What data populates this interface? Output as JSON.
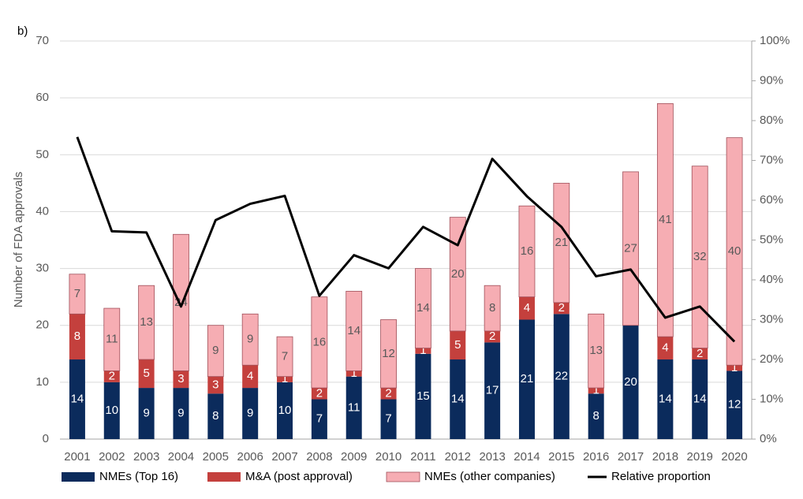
{
  "chart_data": {
    "type": "bar",
    "stacked": true,
    "panel_label": "b)",
    "y_label": "Number of FDA approvals",
    "categories": [
      "2001",
      "2002",
      "2003",
      "2004",
      "2005",
      "2006",
      "2007",
      "2008",
      "2009",
      "2010",
      "2011",
      "2012",
      "2013",
      "2014",
      "2015",
      "2016",
      "2017",
      "2018",
      "2019",
      "2020"
    ],
    "series": [
      {
        "name": "NMEs (Top 16)",
        "color": "#0b2b5c",
        "label_color": "#ffffff",
        "values": [
          14,
          10,
          9,
          9,
          8,
          9,
          10,
          7,
          11,
          7,
          15,
          14,
          17,
          21,
          22,
          8,
          20,
          14,
          14,
          12
        ]
      },
      {
        "name": "M&A (post approval)",
        "color": "#c4403d",
        "label_color": "#ffffff",
        "values": [
          8,
          2,
          5,
          3,
          3,
          4,
          1,
          2,
          1,
          2,
          1,
          5,
          2,
          4,
          2,
          1,
          0,
          4,
          2,
          1
        ]
      },
      {
        "name": "NMEs (other companies)",
        "color": "#f6adb3",
        "label_color": "#595959",
        "values": [
          7,
          11,
          13,
          24,
          9,
          9,
          7,
          16,
          14,
          12,
          14,
          20,
          8,
          16,
          21,
          13,
          27,
          41,
          32,
          40
        ]
      },
      {
        "name": "Relative proportion",
        "color": "#000000",
        "type": "line",
        "axis": "y2",
        "values": [
          75.9,
          52.2,
          51.9,
          33.3,
          55,
          59.1,
          61.1,
          36,
          46.2,
          42.9,
          53.3,
          48.7,
          70.4,
          61,
          53.3,
          40.9,
          42.6,
          30.5,
          33.3,
          24.5
        ]
      }
    ],
    "ylim": [
      0,
      70
    ],
    "yticks": [
      0,
      10,
      20,
      30,
      40,
      50,
      60,
      70
    ],
    "y2lim": [
      0,
      100
    ],
    "y2ticks": [
      {
        "value": 0,
        "label": "0%"
      },
      {
        "value": 10,
        "label": "10%"
      },
      {
        "value": 20,
        "label": "20%"
      },
      {
        "value": 30,
        "label": "30%"
      },
      {
        "value": 40,
        "label": "40%"
      },
      {
        "value": 50,
        "label": "50%"
      },
      {
        "value": 60,
        "label": "60%"
      },
      {
        "value": 70,
        "label": "70%"
      },
      {
        "value": 80,
        "label": "80%"
      },
      {
        "value": 90,
        "label": "90%"
      },
      {
        "value": 100,
        "label": "100%"
      }
    ],
    "grid": true
  }
}
